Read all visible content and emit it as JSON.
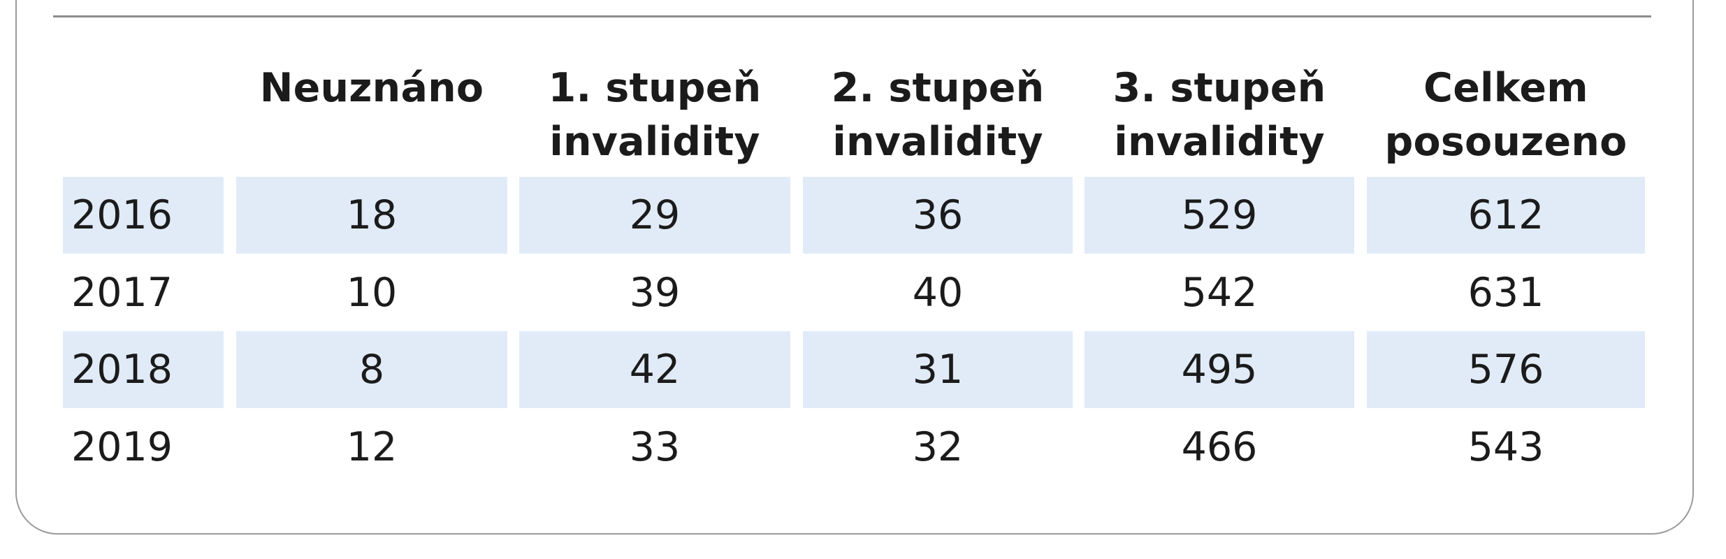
{
  "table": {
    "headers": [
      "",
      "Neuznáno",
      "1. stupeň\ninvalidity",
      "2. stupeň\ninvalidity",
      "3. stupeň\ninvalidity",
      "Celkem\nposouzeno"
    ],
    "rows": [
      [
        "2016",
        "18",
        "29",
        "36",
        "529",
        "612"
      ],
      [
        "2017",
        "10",
        "39",
        "40",
        "542",
        "631"
      ],
      [
        "2018",
        "8",
        "42",
        "31",
        "495",
        "576"
      ],
      [
        "2019",
        "12",
        "33",
        "32",
        "466",
        "543"
      ]
    ],
    "colors": {
      "shaded_row": "#e1ebf8",
      "border": "#9a9a9a"
    }
  }
}
